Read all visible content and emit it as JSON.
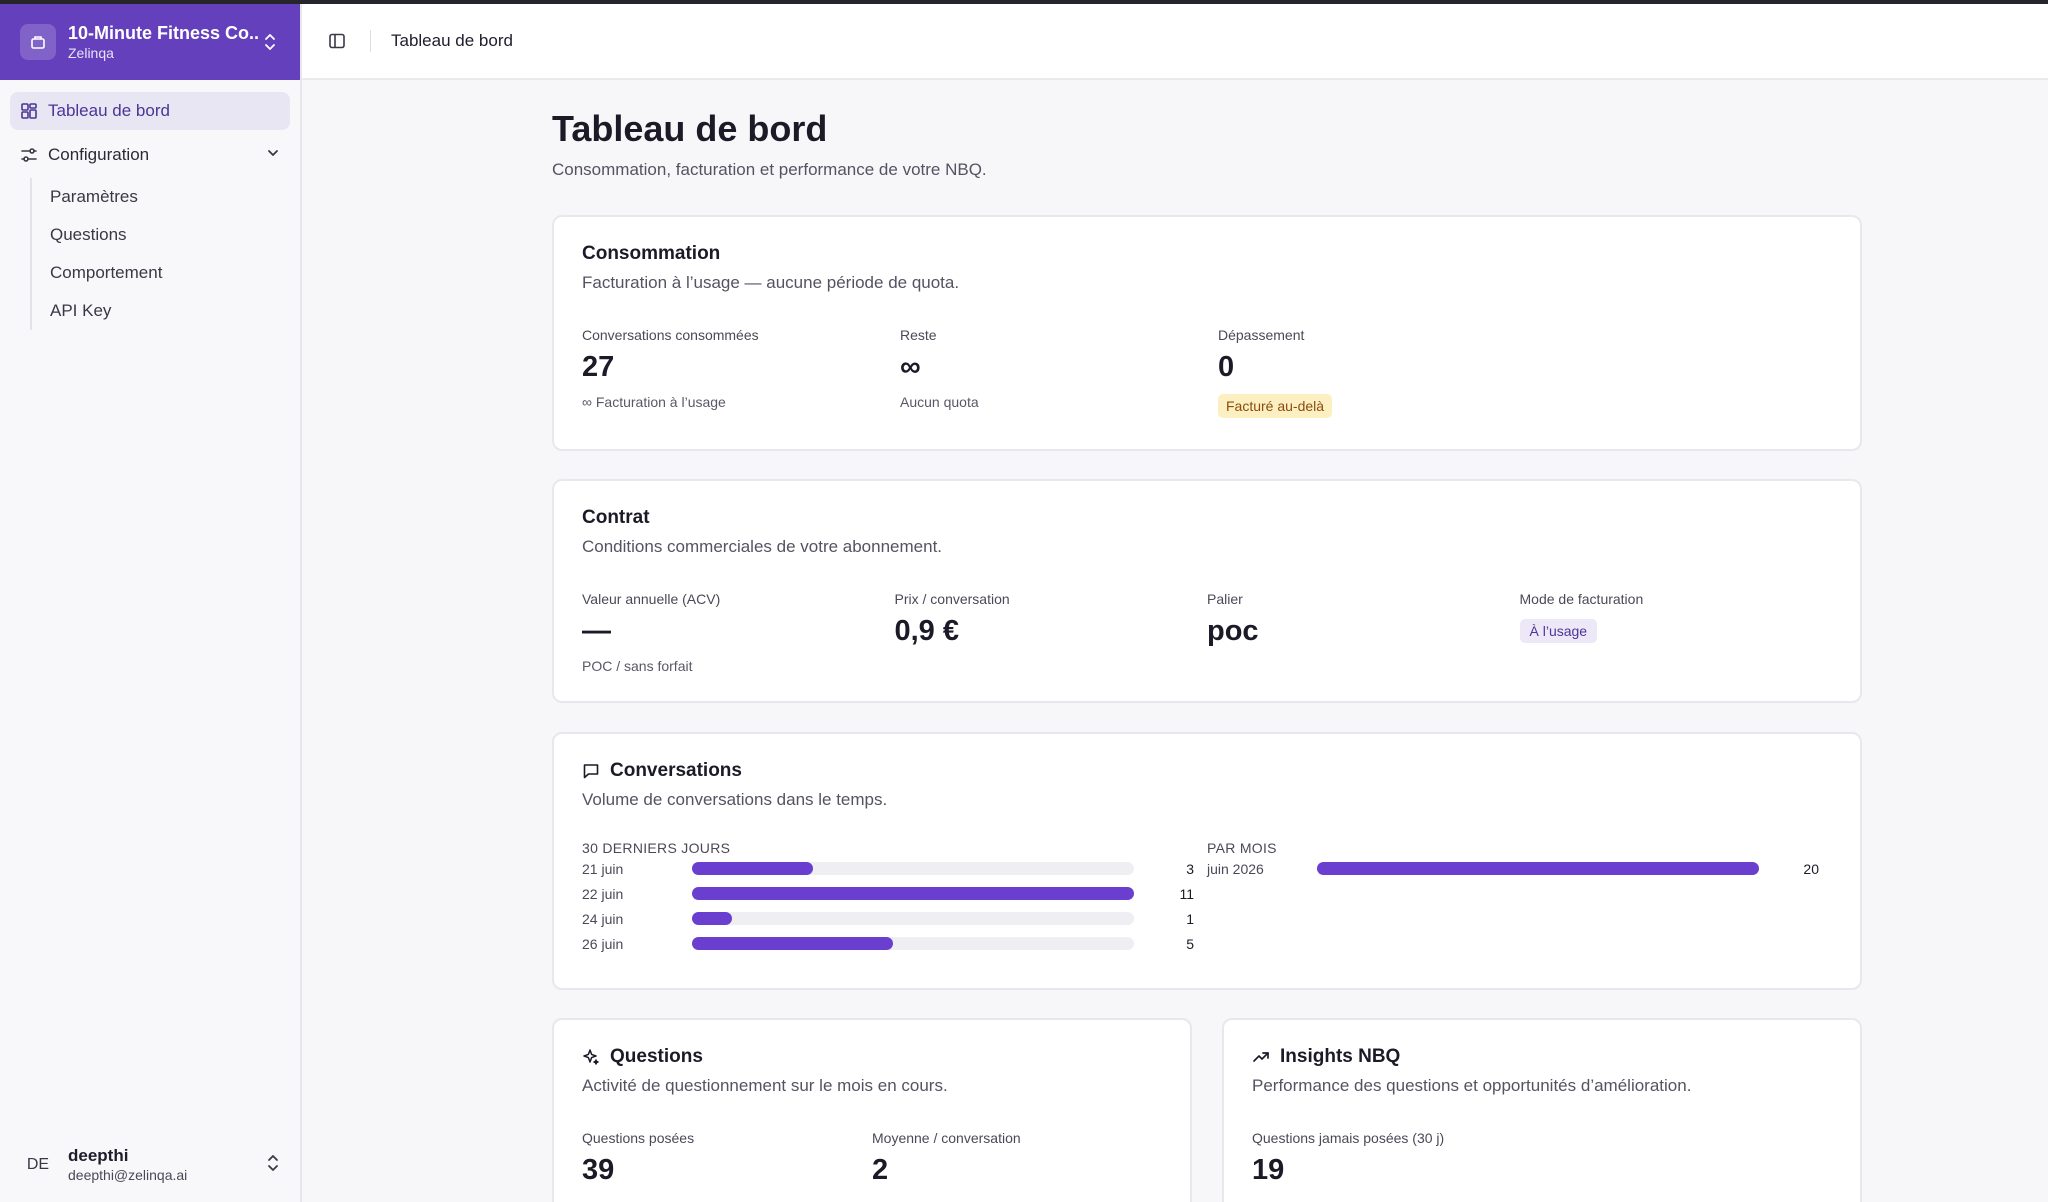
{
  "org": {
    "name": "10-Minute Fitness Co...",
    "subtitle": "Zelinqa"
  },
  "sidebar": {
    "items": [
      {
        "label": "Tableau de bord"
      },
      {
        "label": "Configuration"
      }
    ],
    "sub_items": [
      {
        "label": "Paramètres"
      },
      {
        "label": "Questions"
      },
      {
        "label": "Comportement"
      },
      {
        "label": "API Key"
      }
    ]
  },
  "user": {
    "initials": "DE",
    "name": "deepthi",
    "email": "deepthi@zelinqa.ai"
  },
  "header": {
    "breadcrumb": "Tableau de bord"
  },
  "page": {
    "title": "Tableau de bord",
    "subtitle": "Consommation, facturation et performance de votre NBQ."
  },
  "consumption": {
    "title": "Consommation",
    "desc": "Facturation à l’usage — aucune période de quota.",
    "stats": [
      {
        "label": "Conversations consommées",
        "value": "27",
        "note": "∞ Facturation à l’usage"
      },
      {
        "label": "Reste",
        "value": "∞",
        "note": "Aucun quota"
      },
      {
        "label": "Dépassement",
        "value": "0",
        "badge": "Facturé au-delà"
      }
    ]
  },
  "contract": {
    "title": "Contrat",
    "desc": "Conditions commerciales de votre abonnement.",
    "stats": [
      {
        "label": "Valeur annuelle (ACV)",
        "value": "—",
        "note": "POC / sans forfait"
      },
      {
        "label": "Prix / conversation",
        "value": "0,9 €"
      },
      {
        "label": "Palier",
        "value": "poc"
      },
      {
        "label": "Mode de facturation",
        "badge": "À l’usage"
      }
    ]
  },
  "conversations": {
    "title": "Conversations",
    "desc": "Volume de conversations dans le temps.",
    "daily_head": "30 DERNIERS JOURS",
    "monthly_head": "PAR MOIS"
  },
  "chart_data": [
    {
      "type": "bar",
      "title": "30 DERNIERS JOURS",
      "orientation": "horizontal",
      "categories": [
        "21 juin",
        "22 juin",
        "24 juin",
        "26 juin"
      ],
      "values": [
        3,
        11,
        1,
        5
      ],
      "max": 11
    },
    {
      "type": "bar",
      "title": "PAR MOIS",
      "orientation": "horizontal",
      "categories": [
        "juin 2026"
      ],
      "values": [
        20
      ],
      "max": 20
    }
  ],
  "questions": {
    "title": "Questions",
    "desc": "Activité de questionnement sur le mois en cours.",
    "stats": [
      {
        "label": "Questions posées",
        "value": "39"
      },
      {
        "label": "Moyenne / conversation",
        "value": "2"
      }
    ]
  },
  "insights": {
    "title": "Insights NBQ",
    "desc": "Performance des questions et opportunités d’amélioration.",
    "stats": [
      {
        "label": "Questions jamais posées (30 j)",
        "value": "19"
      }
    ]
  },
  "colors": {
    "brand": "#6540bd",
    "bar": "#6a3fd0",
    "warn_bg": "#fcefc2"
  }
}
